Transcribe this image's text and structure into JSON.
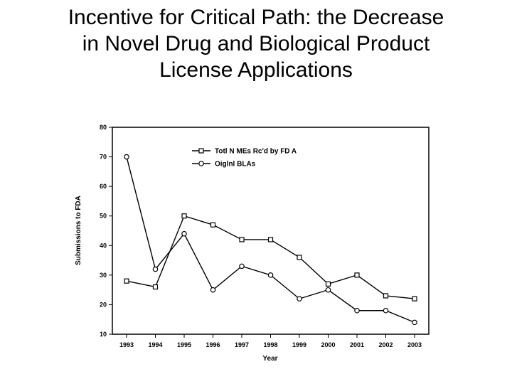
{
  "slide": {
    "title_lines": [
      "Incentive for Critical Path: the Decrease",
      "in Novel Drug and Biological Product",
      "License Applications"
    ]
  },
  "chart_data": {
    "type": "line",
    "xlabel": "Year",
    "ylabel": "Submissions to FDA",
    "x": [
      "1993",
      "1994",
      "1995",
      "1996",
      "1997",
      "1998",
      "1999",
      "2000",
      "2001",
      "2002",
      "2003"
    ],
    "ylim": [
      10,
      80
    ],
    "yticks": [
      10,
      20,
      30,
      40,
      50,
      60,
      70,
      80
    ],
    "grid": false,
    "legend_position": "top-right",
    "series": [
      {
        "name": "Totl N MEs Rc'd by FD A",
        "marker": "square",
        "values": [
          28,
          26,
          50,
          47,
          42,
          42,
          36,
          27,
          30,
          23,
          22
        ]
      },
      {
        "name": "Oiglnl BLAs",
        "marker": "circle",
        "values": [
          70,
          32,
          44,
          25,
          33,
          30,
          22,
          25,
          18,
          18,
          14
        ]
      }
    ]
  }
}
